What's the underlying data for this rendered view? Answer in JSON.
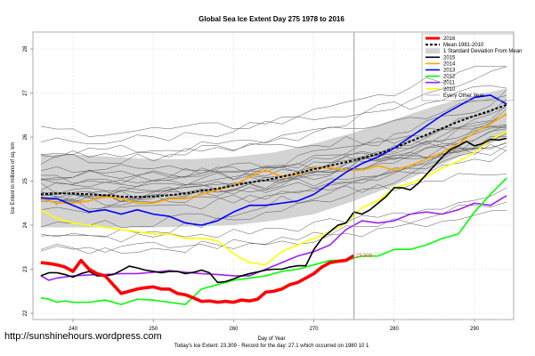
{
  "chart_data": {
    "type": "line",
    "title": "Global Sea Ice Extent Day 275 1978 to 2016",
    "xlabel": "Day of Year",
    "ylabel": "Ice Extent in millions of sq. km",
    "subtitle": "Today's Ice Extent: 23.309  - Record for the day: 27.1 which occurred on 1980 10 1",
    "xlim": [
      235,
      295
    ],
    "ylim": [
      21.85,
      28.4
    ],
    "x_ticks": [
      240,
      250,
      260,
      270,
      280,
      290
    ],
    "y_ticks": [
      22,
      23,
      24,
      25,
      26,
      27,
      28
    ],
    "grid": true,
    "current_day": 275,
    "current_value_label": "23.309",
    "legend_position": "top-right",
    "legend": [
      {
        "label": "2016",
        "color": "#ff0000",
        "style": "thick"
      },
      {
        "label": "Mean 1981-2010",
        "color": "#000000",
        "style": "dashed"
      },
      {
        "label": "1 Standard Deviation From Mean",
        "color": "#d3d3d3",
        "style": "band"
      },
      {
        "label": "2015",
        "color": "#000000",
        "style": "solid"
      },
      {
        "label": "2014",
        "color": "#ffa500",
        "style": "solid"
      },
      {
        "label": "2013",
        "color": "#0000ff",
        "style": "solid"
      },
      {
        "label": "2012",
        "color": "#00ff00",
        "style": "solid"
      },
      {
        "label": "2011",
        "color": "#a020f0",
        "style": "solid"
      },
      {
        "label": "2010",
        "color": "#ffff00",
        "style": "solid"
      },
      {
        "label": "Every Other Year",
        "color": "#808080",
        "style": "thin"
      }
    ],
    "band": {
      "name": "1 Standard Deviation From Mean",
      "x": [
        236,
        240,
        245,
        250,
        255,
        260,
        265,
        270,
        275,
        280,
        285,
        290,
        294
      ],
      "upper": [
        25.6,
        25.6,
        25.55,
        25.5,
        25.5,
        25.55,
        25.65,
        25.85,
        26.1,
        26.4,
        26.7,
        26.95,
        27.1
      ],
      "lower": [
        23.95,
        23.95,
        23.95,
        23.95,
        23.97,
        24.0,
        24.1,
        24.25,
        24.55,
        24.9,
        25.3,
        25.7,
        26.0
      ]
    },
    "series": [
      {
        "name": "Mean 1981-2010",
        "color": "#000000",
        "x": [
          236,
          238,
          240,
          242,
          244,
          246,
          248,
          250,
          252,
          254,
          256,
          258,
          260,
          262,
          264,
          266,
          268,
          270,
          272,
          274,
          276,
          278,
          280,
          282,
          284,
          286,
          288,
          290,
          292,
          294
        ],
        "values": [
          24.7,
          24.72,
          24.72,
          24.7,
          24.68,
          24.65,
          24.64,
          24.65,
          24.68,
          24.72,
          24.78,
          24.83,
          24.9,
          24.97,
          25.02,
          25.1,
          25.18,
          25.27,
          25.35,
          25.43,
          25.52,
          25.62,
          25.75,
          25.9,
          26.05,
          26.2,
          26.35,
          26.48,
          26.6,
          26.73
        ]
      },
      {
        "name": "2015",
        "color": "#000000",
        "x": [
          236,
          237,
          238,
          239,
          240,
          241,
          242,
          243,
          244,
          245,
          246,
          247,
          248,
          249,
          250,
          251,
          252,
          253,
          254,
          255,
          256,
          257,
          258,
          259,
          260,
          261,
          262,
          263,
          264,
          265,
          266,
          267,
          268,
          269,
          270,
          271,
          272,
          273,
          274,
          275,
          276,
          277,
          278,
          279,
          280,
          281,
          282,
          283,
          284,
          285,
          286,
          287,
          288,
          289,
          290,
          291,
          292,
          293,
          294
        ],
        "values": [
          22.85,
          22.92,
          22.92,
          22.88,
          22.82,
          22.9,
          22.95,
          22.85,
          22.85,
          22.88,
          22.97,
          23.07,
          23.03,
          22.98,
          22.95,
          22.92,
          22.95,
          22.95,
          22.9,
          22.93,
          22.98,
          22.92,
          22.7,
          22.72,
          22.78,
          22.85,
          22.9,
          22.94,
          22.98,
          23.0,
          23.0,
          23.05,
          23.08,
          23.08,
          23.45,
          23.7,
          23.85,
          24.0,
          24.05,
          24.3,
          24.25,
          24.35,
          24.5,
          24.65,
          24.85,
          24.85,
          24.8,
          24.95,
          25.15,
          25.35,
          25.55,
          25.72,
          25.8,
          25.9,
          25.8,
          25.85,
          25.95,
          25.93,
          25.97
        ]
      },
      {
        "name": "2014",
        "color": "#ffa500",
        "x": [
          236,
          238,
          240,
          242,
          244,
          246,
          248,
          250,
          252,
          254,
          256,
          258,
          260,
          262,
          264,
          266,
          268,
          270,
          272,
          274,
          276,
          278,
          280,
          282,
          284,
          286,
          288,
          290,
          292,
          294
        ],
        "values": [
          24.6,
          24.5,
          24.5,
          24.55,
          24.65,
          24.6,
          24.5,
          24.5,
          24.6,
          24.6,
          24.7,
          24.8,
          24.9,
          25.1,
          25.25,
          25.1,
          25.15,
          25.3,
          25.3,
          25.25,
          25.25,
          25.35,
          25.25,
          25.35,
          25.5,
          25.65,
          25.85,
          26.1,
          26.3,
          26.53
        ]
      },
      {
        "name": "2013",
        "color": "#0000ff",
        "x": [
          236,
          238,
          240,
          242,
          244,
          246,
          248,
          250,
          252,
          254,
          256,
          258,
          260,
          262,
          264,
          266,
          268,
          270,
          272,
          274,
          276,
          278,
          280,
          282,
          284,
          286,
          288,
          290,
          292,
          294
        ],
        "values": [
          24.62,
          24.6,
          24.45,
          24.3,
          24.35,
          24.25,
          24.35,
          24.25,
          24.2,
          24.05,
          24.0,
          24.1,
          24.3,
          24.45,
          24.45,
          24.5,
          24.55,
          24.7,
          24.95,
          25.2,
          25.4,
          25.55,
          25.75,
          26.0,
          26.25,
          26.5,
          26.7,
          26.9,
          26.95,
          26.75
        ]
      },
      {
        "name": "2012",
        "color": "#00ff00",
        "x": [
          236,
          237,
          238,
          239,
          240,
          242,
          244,
          246,
          248,
          250,
          252,
          254,
          256,
          258,
          260,
          262,
          264,
          266,
          268,
          270,
          272,
          274,
          276,
          278,
          280,
          282,
          284,
          286,
          288,
          290,
          292,
          294
        ],
        "values": [
          22.35,
          22.32,
          22.25,
          22.28,
          22.25,
          22.25,
          22.3,
          22.2,
          22.32,
          22.3,
          22.25,
          22.2,
          22.55,
          22.65,
          22.75,
          22.8,
          22.85,
          22.95,
          23.0,
          23.1,
          23.2,
          23.2,
          23.3,
          23.3,
          23.45,
          23.45,
          23.55,
          23.7,
          23.8,
          24.3,
          24.7,
          25.07
        ]
      },
      {
        "name": "2011",
        "color": "#a020f0",
        "x": [
          236,
          237,
          238,
          240,
          242,
          244,
          246,
          248,
          250,
          252,
          254,
          256,
          258,
          260,
          262,
          264,
          266,
          268,
          270,
          272,
          274,
          276,
          278,
          280,
          282,
          284,
          286,
          288,
          290,
          292,
          294
        ],
        "values": [
          22.85,
          22.75,
          22.8,
          22.85,
          22.87,
          22.88,
          22.9,
          22.9,
          22.93,
          22.97,
          22.93,
          22.9,
          22.88,
          22.85,
          22.85,
          23.0,
          23.15,
          23.3,
          23.4,
          23.55,
          23.9,
          24.1,
          24.05,
          24.1,
          24.25,
          24.3,
          24.25,
          24.35,
          24.5,
          24.45,
          24.67
        ]
      },
      {
        "name": "2010",
        "color": "#ffff00",
        "x": [
          236,
          238,
          240,
          242,
          244,
          246,
          248,
          250,
          252,
          254,
          256,
          258,
          260,
          262,
          264,
          266,
          268,
          270,
          272,
          274,
          276,
          278,
          280,
          282,
          284,
          286,
          288,
          290,
          292,
          294
        ],
        "values": [
          24.35,
          24.15,
          24.05,
          24.0,
          23.95,
          23.9,
          23.85,
          23.8,
          23.8,
          23.7,
          23.7,
          23.65,
          23.35,
          23.15,
          23.1,
          23.4,
          23.55,
          23.7,
          23.85,
          24.05,
          24.4,
          24.55,
          24.85,
          24.95,
          25.1,
          25.3,
          25.45,
          25.65,
          25.95,
          26.12
        ]
      },
      {
        "name": "2016",
        "color": "#ff0000",
        "x": [
          236,
          237,
          238,
          239,
          240,
          241,
          242,
          243,
          244,
          245,
          246,
          247,
          248,
          249,
          250,
          251,
          252,
          253,
          254,
          255,
          256,
          257,
          258,
          259,
          260,
          261,
          262,
          263,
          264,
          265,
          266,
          267,
          268,
          269,
          270,
          271,
          272,
          273,
          274,
          275
        ],
        "values": [
          23.15,
          23.13,
          23.1,
          23.05,
          22.95,
          23.2,
          23.0,
          22.9,
          22.85,
          22.65,
          22.45,
          22.5,
          22.55,
          22.58,
          22.6,
          22.55,
          22.55,
          22.45,
          22.42,
          22.35,
          22.27,
          22.28,
          22.25,
          22.27,
          22.25,
          22.3,
          22.28,
          22.32,
          22.48,
          22.5,
          22.55,
          22.65,
          22.7,
          22.8,
          22.9,
          23.05,
          23.15,
          23.18,
          23.2,
          23.31
        ]
      }
    ],
    "every_other_year_note": "Thin gray lines for the remaining years 1978-2009 (approximate)"
  },
  "watermark": "http://sunshinehours.wordpress.com"
}
